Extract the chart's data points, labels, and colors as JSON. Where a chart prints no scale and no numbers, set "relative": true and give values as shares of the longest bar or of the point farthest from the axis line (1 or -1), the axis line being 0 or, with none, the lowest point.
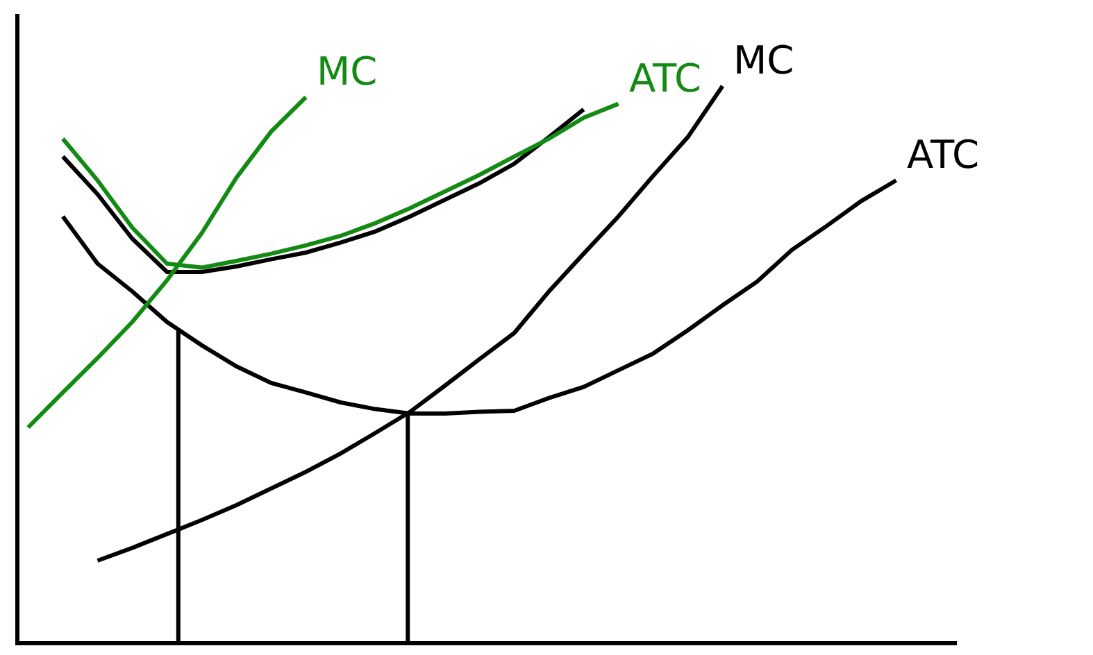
{
  "chart_data": {
    "type": "line",
    "relative": true,
    "grid": false,
    "legend": false,
    "marker": "none",
    "line_style": "solid",
    "categories": [
      null,
      null,
      null,
      null,
      null,
      null,
      null,
      null,
      null,
      null,
      null,
      null,
      null,
      null,
      null,
      null,
      null,
      null,
      null,
      null,
      null,
      null,
      null,
      null,
      null,
      null,
      null
    ],
    "series": [
      {
        "name": "MC",
        "color": "#000000",
        "values": [
          null,
          null,
          0.145,
          0.168,
          0.193,
          0.218,
          0.245,
          0.275,
          0.305,
          0.338,
          0.375,
          0.413,
          0.46,
          0.508,
          0.555,
          0.63,
          0.698,
          0.765,
          0.838,
          0.908,
          1.0,
          null,
          null,
          null,
          null,
          null,
          null
        ]
      },
      {
        "name": "ATC",
        "color": "#000000",
        "values": [
          null,
          0.765,
          0.68,
          0.63,
          0.575,
          0.533,
          0.495,
          0.465,
          0.448,
          0.43,
          0.418,
          0.41,
          0.41,
          0.413,
          0.415,
          0.438,
          0.458,
          0.488,
          0.518,
          0.56,
          0.605,
          0.648,
          0.705,
          0.748,
          0.793,
          0.83,
          null
        ]
      },
      {
        "color": "#000000",
        "values": [
          null,
          0.873,
          0.805,
          0.725,
          0.665,
          0.665,
          0.675,
          0.688,
          0.7,
          0.718,
          0.738,
          0.765,
          0.795,
          0.825,
          0.86,
          0.908,
          0.958,
          null,
          null,
          null,
          null,
          null,
          null,
          null,
          null,
          null,
          null
        ]
      },
      {
        "name": "ATC",
        "color": "#138a13",
        "values": [
          null,
          0.905,
          0.83,
          0.745,
          0.68,
          0.673,
          0.685,
          0.698,
          0.713,
          0.73,
          0.753,
          0.78,
          0.81,
          0.84,
          0.873,
          0.905,
          0.943,
          0.968,
          null,
          null,
          null,
          null,
          null,
          null,
          null,
          null,
          null
        ]
      },
      {
        "name": "MC",
        "color": "#138a13",
        "values": [
          0.385,
          0.448,
          0.51,
          0.575,
          0.65,
          0.735,
          0.835,
          0.918,
          0.98,
          null,
          null,
          null,
          null,
          null,
          null,
          null,
          null,
          null,
          null,
          null,
          null,
          null,
          null,
          null,
          null,
          null,
          null
        ]
      }
    ]
  }
}
